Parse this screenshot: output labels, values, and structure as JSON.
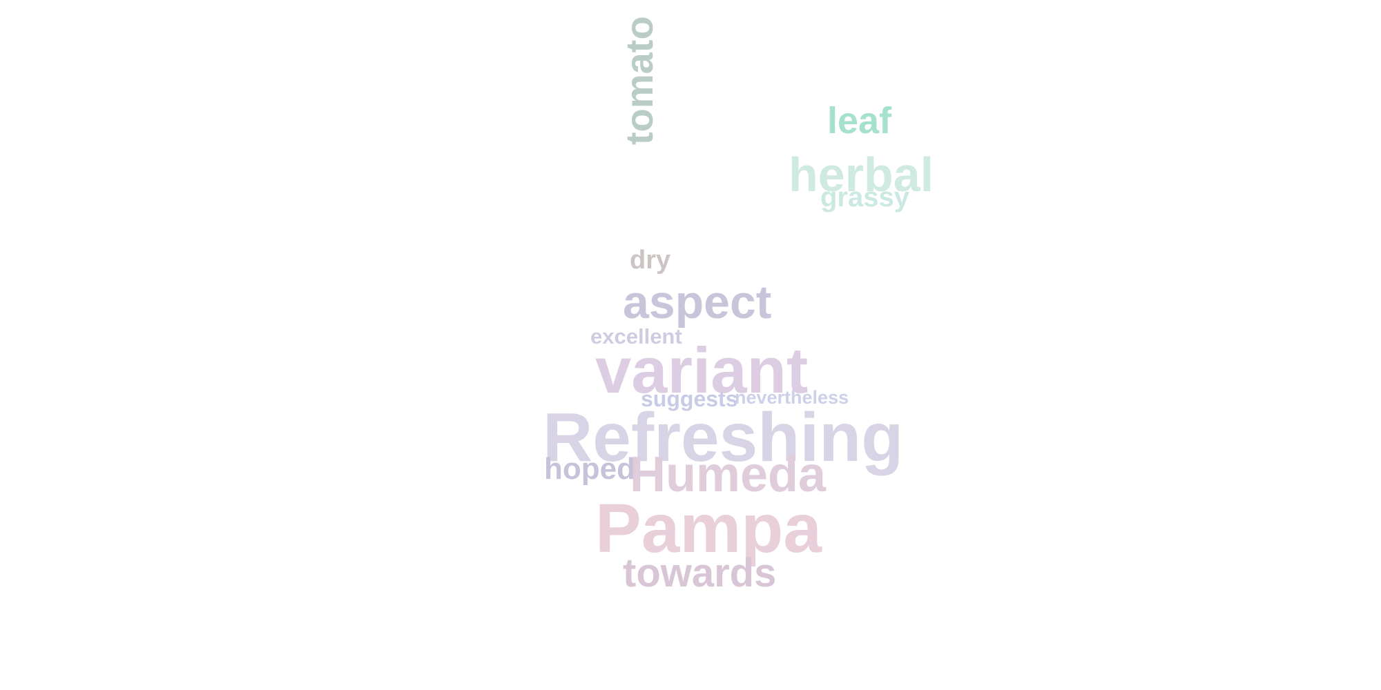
{
  "words": [
    {
      "id": "leaf",
      "text": "leaf",
      "color": "#a6e0cf"
    },
    {
      "id": "herbal",
      "text": "herbal",
      "color": "#cfeadf"
    },
    {
      "id": "grassy",
      "text": "grassy",
      "color": "#cbe9e2"
    },
    {
      "id": "tomato",
      "text": "tomato",
      "color": "#b9ccc6",
      "rotated": true
    },
    {
      "id": "dry",
      "text": "dry",
      "color": "#ccc3c3"
    },
    {
      "id": "aspect",
      "text": "aspect",
      "color": "#c8c5da"
    },
    {
      "id": "excellent",
      "text": "excellent",
      "color": "#cfcbe0"
    },
    {
      "id": "variant",
      "text": "variant",
      "color": "#ddcde3"
    },
    {
      "id": "suggests",
      "text": "suggests",
      "color": "#c8cbe5"
    },
    {
      "id": "nevertheless",
      "text": "nevertheless",
      "color": "#ccd0e8"
    },
    {
      "id": "refreshing",
      "text": "Refreshing",
      "color": "#d8d4e6"
    },
    {
      "id": "hoped",
      "text": "hoped",
      "color": "#c7c1d9"
    },
    {
      "id": "humeda",
      "text": "Humeda",
      "color": "#e0cddb"
    },
    {
      "id": "pampa",
      "text": "Pampa",
      "color": "#e8cfd9"
    },
    {
      "id": "towards",
      "text": "towards",
      "color": "#d8c6d6"
    }
  ]
}
